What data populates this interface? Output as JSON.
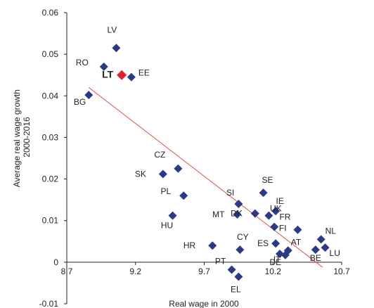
{
  "chart_data": {
    "type": "scatter",
    "xlabel": "Real wage in 2000",
    "ylabel_lines": [
      "Average real wage growth",
      "2000-2016"
    ],
    "xlim": [
      8.7,
      10.7
    ],
    "ylim": [
      -0.01,
      0.06
    ],
    "x_ticks": [
      "8.7",
      "9.2",
      "9.7",
      "10.2",
      "10.7"
    ],
    "y_ticks": [
      "-0.01",
      "0",
      "0.01",
      "0.02",
      "0.03",
      "0.04",
      "0.05",
      "0.06"
    ],
    "colors": {
      "point": "#2b3a87",
      "highlight": "#e0202a",
      "trend": "#e8504a",
      "axis": "#222222"
    },
    "points": [
      {
        "label": "LV",
        "x": 9.06,
        "y": 0.0515
      },
      {
        "label": "RO",
        "x": 8.97,
        "y": 0.047
      },
      {
        "label": "LT",
        "x": 9.1,
        "y": 0.045,
        "highlight": true
      },
      {
        "label": "EE",
        "x": 9.17,
        "y": 0.0445
      },
      {
        "label": "BG",
        "x": 8.86,
        "y": 0.0402
      },
      {
        "label": "CZ",
        "x": 9.51,
        "y": 0.0225
      },
      {
        "label": "SK",
        "x": 9.4,
        "y": 0.0212
      },
      {
        "label": "PL",
        "x": 9.55,
        "y": 0.016
      },
      {
        "label": "HU",
        "x": 9.47,
        "y": 0.0112
      },
      {
        "label": "SI",
        "x": 9.95,
        "y": 0.014
      },
      {
        "label": "MT",
        "x": 9.94,
        "y": 0.0115
      },
      {
        "label": "DK",
        "x": 10.07,
        "y": 0.0117
      },
      {
        "label": "SE",
        "x": 10.13,
        "y": 0.0167
      },
      {
        "label": "IE",
        "x": 10.22,
        "y": 0.0123
      },
      {
        "label": "UK",
        "x": 10.17,
        "y": 0.0112
      },
      {
        "label": "FI",
        "x": 10.21,
        "y": 0.0085
      },
      {
        "label": "FR",
        "x": 10.38,
        "y": 0.0078
      },
      {
        "label": "NL",
        "x": 10.55,
        "y": 0.0055
      },
      {
        "label": "HR",
        "x": 9.76,
        "y": 0.004
      },
      {
        "label": "CY",
        "x": 9.96,
        "y": 0.003
      },
      {
        "label": "ES",
        "x": 10.22,
        "y": 0.0045
      },
      {
        "label": "AT",
        "x": 10.31,
        "y": 0.0028
      },
      {
        "label": "IT",
        "x": 10.25,
        "y": 0.002
      },
      {
        "label": "DE",
        "x": 10.29,
        "y": 0.0017
      },
      {
        "label": "BE",
        "x": 10.51,
        "y": 0.003
      },
      {
        "label": "LU",
        "x": 10.58,
        "y": 0.0035
      },
      {
        "label": "PT",
        "x": 9.9,
        "y": -0.0018
      },
      {
        "label": "EL",
        "x": 9.95,
        "y": -0.0035
      }
    ],
    "trendline": {
      "x": [
        8.86,
        10.56
      ],
      "y": [
        0.042,
        -0.0012
      ]
    }
  }
}
